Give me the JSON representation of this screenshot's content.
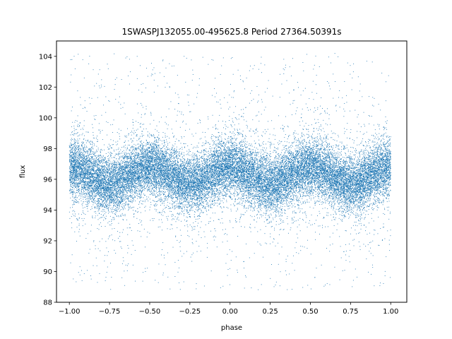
{
  "chart_data": {
    "type": "scatter",
    "title": "1SWASPJ132055.00-495625.8 Period 27364.50391s",
    "xlabel": "phase",
    "ylabel": "flux",
    "xlim": [
      -1.08,
      1.1
    ],
    "ylim": [
      88,
      105
    ],
    "x_ticks": [
      -1.0,
      -0.75,
      -0.5,
      -0.25,
      0.0,
      0.25,
      0.5,
      0.75,
      1.0
    ],
    "x_tick_labels": [
      "−1.00",
      "−0.75",
      "−0.50",
      "−0.25",
      "0.00",
      "0.25",
      "0.50",
      "0.75",
      "1.00"
    ],
    "y_ticks": [
      88,
      90,
      92,
      94,
      96,
      98,
      100,
      102,
      104
    ],
    "y_tick_labels": [
      "88",
      "90",
      "92",
      "94",
      "96",
      "98",
      "100",
      "102",
      "104"
    ],
    "grid": false,
    "point_color": "#1f77b4",
    "series": [
      {
        "x_range": [
          -1.0,
          1.0
        ],
        "y_range": [
          88.8,
          104.3
        ],
        "model": "y ≈ 96.25 + 0.55·cos(4π·phase) (double-wave, period covered twice in phase −1..1)",
        "median_flux_at_maxima": 96.8,
        "median_flux_at_minima": 95.7,
        "maxima_at_phase": [
          -1.0,
          -0.5,
          0.0,
          0.5,
          1.0
        ],
        "minima_at_phase": [
          -0.75,
          -0.25,
          0.25,
          0.75
        ],
        "typical_scatter": 0.9,
        "approx_points": 32000
      }
    ]
  }
}
